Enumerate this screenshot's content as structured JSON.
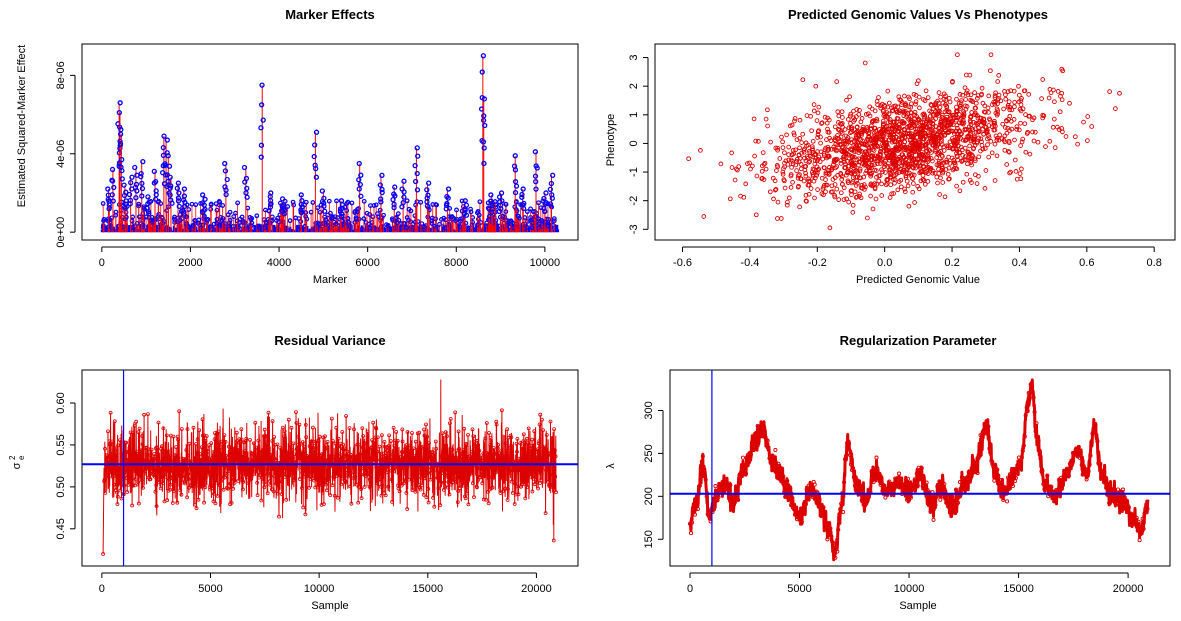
{
  "chart_data": [
    {
      "id": "marker",
      "type": "scatter",
      "title": "Marker Effects",
      "xlabel": "Marker",
      "ylabel": "Estimated Squared-Marker Effect",
      "xlim": [
        0,
        10300
      ],
      "ylim": [
        0,
        9.2e-06
      ],
      "xticks": [
        0,
        2000,
        4000,
        6000,
        8000,
        10000
      ],
      "xtick_labels": [
        "0",
        "2000",
        "4000",
        "6000",
        "8000",
        "10000"
      ],
      "yticks": [
        0,
        4e-06,
        8e-06
      ],
      "ytick_labels": [
        "0e+00",
        "4e-06",
        "8e-06"
      ],
      "series_color": "#0000ff",
      "stem_color": "#ff0000",
      "n_markers": 10300,
      "baseline_max": 4.5e-07,
      "peaks": [
        {
          "x": 150,
          "y": 2.2e-06
        },
        {
          "x": 250,
          "y": 3.2e-06
        },
        {
          "x": 390,
          "y": 6.6e-06
        },
        {
          "x": 410,
          "y": 6.1e-06
        },
        {
          "x": 440,
          "y": 5e-06
        },
        {
          "x": 520,
          "y": 2.4e-06
        },
        {
          "x": 650,
          "y": 2.8e-06
        },
        {
          "x": 770,
          "y": 3.3e-06
        },
        {
          "x": 900,
          "y": 3.6e-06
        },
        {
          "x": 1050,
          "y": 1.8e-06
        },
        {
          "x": 1200,
          "y": 3.1e-06
        },
        {
          "x": 1400,
          "y": 4.9e-06
        },
        {
          "x": 1450,
          "y": 4.7e-06
        },
        {
          "x": 1500,
          "y": 3.9e-06
        },
        {
          "x": 1560,
          "y": 2.8e-06
        },
        {
          "x": 1720,
          "y": 2.5e-06
        },
        {
          "x": 1850,
          "y": 2.2e-06
        },
        {
          "x": 2300,
          "y": 1.9e-06
        },
        {
          "x": 2800,
          "y": 3.5e-06
        },
        {
          "x": 3250,
          "y": 3.3e-06
        },
        {
          "x": 3620,
          "y": 7.5e-06
        },
        {
          "x": 3800,
          "y": 2e-06
        },
        {
          "x": 4100,
          "y": 1.7e-06
        },
        {
          "x": 4500,
          "y": 1.9e-06
        },
        {
          "x": 4820,
          "y": 5.1e-06
        },
        {
          "x": 5000,
          "y": 2.1e-06
        },
        {
          "x": 5400,
          "y": 1.6e-06
        },
        {
          "x": 5820,
          "y": 3.5e-06
        },
        {
          "x": 6300,
          "y": 2.9e-06
        },
        {
          "x": 6600,
          "y": 2.3e-06
        },
        {
          "x": 6800,
          "y": 2.6e-06
        },
        {
          "x": 7100,
          "y": 4.3e-06
        },
        {
          "x": 7350,
          "y": 2.5e-06
        },
        {
          "x": 7800,
          "y": 2.2e-06
        },
        {
          "x": 8200,
          "y": 1.6e-06
        },
        {
          "x": 8600,
          "y": 9e-06
        },
        {
          "x": 8620,
          "y": 6.8e-06
        },
        {
          "x": 8800,
          "y": 1.9e-06
        },
        {
          "x": 9000,
          "y": 2e-06
        },
        {
          "x": 9330,
          "y": 3.9e-06
        },
        {
          "x": 9500,
          "y": 2.2e-06
        },
        {
          "x": 9800,
          "y": 4.1e-06
        },
        {
          "x": 10000,
          "y": 2e-06
        },
        {
          "x": 10150,
          "y": 2.9e-06
        }
      ]
    },
    {
      "id": "pheno",
      "type": "scatter",
      "title": "Predicted Genomic Values Vs Phenotypes",
      "xlabel": "Predicted Genomic Value",
      "ylabel": "Phenotype",
      "xlim": [
        -0.62,
        0.8
      ],
      "ylim": [
        -3.1,
        3.2
      ],
      "xticks": [
        -0.6,
        -0.4,
        -0.2,
        0.0,
        0.2,
        0.4,
        0.6,
        0.8
      ],
      "xtick_labels": [
        "-0.6",
        "-0.4",
        "-0.2",
        "0.0",
        "0.2",
        "0.4",
        "0.6",
        "0.8"
      ],
      "yticks": [
        -3,
        -2,
        -1,
        0,
        1,
        2,
        3
      ],
      "ytick_labels": [
        "-3",
        "-2",
        "-1",
        "0",
        "1",
        "2",
        "3"
      ],
      "point_color": "#dd0000",
      "n_points": 1800,
      "x_mean": 0.05,
      "x_sd": 0.19,
      "slope": 2.0,
      "residual_sd": 0.8
    },
    {
      "id": "resvar",
      "type": "line",
      "title": "Residual Variance",
      "xlabel": "Sample",
      "ylabel": "σ",
      "ylabel_sup": "2",
      "ylabel_sub": "e",
      "xlim": [
        0,
        21000
      ],
      "ylim": [
        0.415,
        0.63
      ],
      "xticks": [
        0,
        5000,
        10000,
        15000,
        20000
      ],
      "xtick_labels": [
        "0",
        "5000",
        "10000",
        "15000",
        "20000"
      ],
      "yticks": [
        0.45,
        0.5,
        0.55,
        0.6
      ],
      "ytick_labels": [
        "0.45",
        "0.50",
        "0.55",
        "0.60"
      ],
      "series_color": "#dd0000",
      "mean_line": 0.527,
      "burnin_line": 1000,
      "ref_color": "#0000ff",
      "n_samples": 2400,
      "sd": 0.022,
      "extremes": [
        {
          "x": 60,
          "y": 0.42
        },
        {
          "x": 15600,
          "y": 0.628
        },
        {
          "x": 20800,
          "y": 0.436
        }
      ]
    },
    {
      "id": "lambda",
      "type": "line",
      "title": "Regularization Parameter",
      "xlabel": "Sample",
      "ylabel": "λ",
      "xlim": [
        0,
        21000
      ],
      "ylim": [
        128,
        338
      ],
      "xticks": [
        0,
        5000,
        10000,
        15000,
        20000
      ],
      "xtick_labels": [
        "0",
        "5000",
        "10000",
        "15000",
        "20000"
      ],
      "yticks": [
        150,
        200,
        250,
        300
      ],
      "ytick_labels": [
        "150",
        "200",
        "250",
        "300"
      ],
      "series_color": "#dd0000",
      "mean_line": 203,
      "burnin_line": 1000,
      "ref_color": "#0000ff",
      "anchors": [
        {
          "x": 0,
          "y": 170
        },
        {
          "x": 300,
          "y": 195
        },
        {
          "x": 600,
          "y": 235
        },
        {
          "x": 900,
          "y": 180
        },
        {
          "x": 1200,
          "y": 200
        },
        {
          "x": 1600,
          "y": 215
        },
        {
          "x": 2000,
          "y": 195
        },
        {
          "x": 2500,
          "y": 235
        },
        {
          "x": 3000,
          "y": 265
        },
        {
          "x": 3300,
          "y": 280
        },
        {
          "x": 3700,
          "y": 245
        },
        {
          "x": 4100,
          "y": 225
        },
        {
          "x": 4500,
          "y": 205
        },
        {
          "x": 5000,
          "y": 175
        },
        {
          "x": 5500,
          "y": 205
        },
        {
          "x": 6000,
          "y": 185
        },
        {
          "x": 6350,
          "y": 160
        },
        {
          "x": 6600,
          "y": 135
        },
        {
          "x": 6900,
          "y": 185
        },
        {
          "x": 7200,
          "y": 262
        },
        {
          "x": 7600,
          "y": 215
        },
        {
          "x": 8000,
          "y": 195
        },
        {
          "x": 8500,
          "y": 230
        },
        {
          "x": 9000,
          "y": 205
        },
        {
          "x": 9500,
          "y": 215
        },
        {
          "x": 10000,
          "y": 205
        },
        {
          "x": 10500,
          "y": 225
        },
        {
          "x": 11000,
          "y": 190
        },
        {
          "x": 11500,
          "y": 210
        },
        {
          "x": 12000,
          "y": 185
        },
        {
          "x": 12500,
          "y": 215
        },
        {
          "x": 13000,
          "y": 235
        },
        {
          "x": 13500,
          "y": 280
        },
        {
          "x": 13900,
          "y": 230
        },
        {
          "x": 14300,
          "y": 205
        },
        {
          "x": 14700,
          "y": 220
        },
        {
          "x": 15100,
          "y": 240
        },
        {
          "x": 15450,
          "y": 310
        },
        {
          "x": 15600,
          "y": 332
        },
        {
          "x": 15850,
          "y": 265
        },
        {
          "x": 16200,
          "y": 215
        },
        {
          "x": 16700,
          "y": 200
        },
        {
          "x": 17200,
          "y": 225
        },
        {
          "x": 17700,
          "y": 255
        },
        {
          "x": 18100,
          "y": 225
        },
        {
          "x": 18450,
          "y": 280
        },
        {
          "x": 18800,
          "y": 225
        },
        {
          "x": 19300,
          "y": 200
        },
        {
          "x": 19800,
          "y": 195
        },
        {
          "x": 20200,
          "y": 175
        },
        {
          "x": 20600,
          "y": 160
        },
        {
          "x": 20900,
          "y": 190
        }
      ]
    }
  ]
}
